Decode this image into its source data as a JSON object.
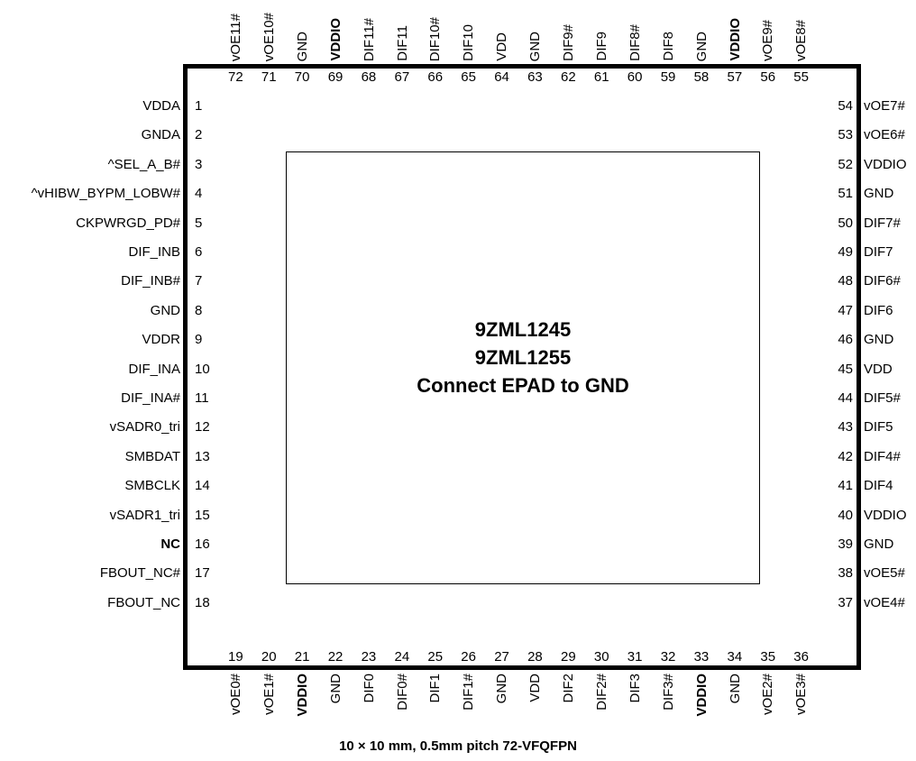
{
  "chip": {
    "names": [
      "9ZML1245",
      "9ZML1255"
    ],
    "epad_note": "Connect EPAD to GND",
    "package_note": "10 × 10 mm, 0.5mm pitch  72-VFQFPN"
  },
  "pins": {
    "left": [
      {
        "num": "1",
        "name": "VDDA",
        "bold": false
      },
      {
        "num": "2",
        "name": "GNDA",
        "bold": false
      },
      {
        "num": "3",
        "name": "^SEL_A_B#",
        "bold": false
      },
      {
        "num": "4",
        "name": "^vHIBW_BYPM_LOBW#",
        "bold": false
      },
      {
        "num": "5",
        "name": "CKPWRGD_PD#",
        "bold": false
      },
      {
        "num": "6",
        "name": "DIF_INB",
        "bold": false
      },
      {
        "num": "7",
        "name": "DIF_INB#",
        "bold": false
      },
      {
        "num": "8",
        "name": "GND",
        "bold": false
      },
      {
        "num": "9",
        "name": "VDDR",
        "bold": false
      },
      {
        "num": "10",
        "name": "DIF_INA",
        "bold": false
      },
      {
        "num": "11",
        "name": "DIF_INA#",
        "bold": false
      },
      {
        "num": "12",
        "name": "vSADR0_tri",
        "bold": false
      },
      {
        "num": "13",
        "name": "SMBDAT",
        "bold": false
      },
      {
        "num": "14",
        "name": "SMBCLK",
        "bold": false
      },
      {
        "num": "15",
        "name": "vSADR1_tri",
        "bold": false
      },
      {
        "num": "16",
        "name": "NC",
        "bold": true
      },
      {
        "num": "17",
        "name": "FBOUT_NC#",
        "bold": false
      },
      {
        "num": "18",
        "name": "FBOUT_NC",
        "bold": false
      }
    ],
    "right": [
      {
        "num": "54",
        "name": "vOE7#",
        "bold": false
      },
      {
        "num": "53",
        "name": "vOE6#",
        "bold": false
      },
      {
        "num": "52",
        "name": "VDDIO",
        "bold": false
      },
      {
        "num": "51",
        "name": "GND",
        "bold": false
      },
      {
        "num": "50",
        "name": "DIF7#",
        "bold": false
      },
      {
        "num": "49",
        "name": "DIF7",
        "bold": false
      },
      {
        "num": "48",
        "name": "DIF6#",
        "bold": false
      },
      {
        "num": "47",
        "name": "DIF6",
        "bold": false
      },
      {
        "num": "46",
        "name": "GND",
        "bold": false
      },
      {
        "num": "45",
        "name": "VDD",
        "bold": false
      },
      {
        "num": "44",
        "name": "DIF5#",
        "bold": false
      },
      {
        "num": "43",
        "name": "DIF5",
        "bold": false
      },
      {
        "num": "42",
        "name": "DIF4#",
        "bold": false
      },
      {
        "num": "41",
        "name": "DIF4",
        "bold": false
      },
      {
        "num": "40",
        "name": "VDDIO",
        "bold": false
      },
      {
        "num": "39",
        "name": "GND",
        "bold": false
      },
      {
        "num": "38",
        "name": "vOE5#",
        "bold": false
      },
      {
        "num": "37",
        "name": "vOE4#",
        "bold": false
      }
    ],
    "top": [
      {
        "num": "72",
        "name": "vOE11#",
        "bold": false
      },
      {
        "num": "71",
        "name": "vOE10#",
        "bold": false
      },
      {
        "num": "70",
        "name": "GND",
        "bold": false
      },
      {
        "num": "69",
        "name": "VDDIO",
        "bold": true
      },
      {
        "num": "68",
        "name": "DIF11#",
        "bold": false
      },
      {
        "num": "67",
        "name": "DIF11",
        "bold": false
      },
      {
        "num": "66",
        "name": "DIF10#",
        "bold": false
      },
      {
        "num": "65",
        "name": "DIF10",
        "bold": false
      },
      {
        "num": "64",
        "name": "VDD",
        "bold": false
      },
      {
        "num": "63",
        "name": "GND",
        "bold": false
      },
      {
        "num": "62",
        "name": "DIF9#",
        "bold": false
      },
      {
        "num": "61",
        "name": "DIF9",
        "bold": false
      },
      {
        "num": "60",
        "name": "DIF8#",
        "bold": false
      },
      {
        "num": "59",
        "name": "DIF8",
        "bold": false
      },
      {
        "num": "58",
        "name": "GND",
        "bold": false
      },
      {
        "num": "57",
        "name": "VDDIO",
        "bold": true
      },
      {
        "num": "56",
        "name": "vOE9#",
        "bold": false
      },
      {
        "num": "55",
        "name": "vOE8#",
        "bold": false
      }
    ],
    "bottom": [
      {
        "num": "19",
        "name": "vOE0#",
        "bold": false
      },
      {
        "num": "20",
        "name": "vOE1#",
        "bold": false
      },
      {
        "num": "21",
        "name": "VDDIO",
        "bold": true
      },
      {
        "num": "22",
        "name": "GND",
        "bold": false
      },
      {
        "num": "23",
        "name": "DIF0",
        "bold": false
      },
      {
        "num": "24",
        "name": "DIF0#",
        "bold": false
      },
      {
        "num": "25",
        "name": "DIF1",
        "bold": false
      },
      {
        "num": "26",
        "name": "DIF1#",
        "bold": false
      },
      {
        "num": "27",
        "name": "GND",
        "bold": false
      },
      {
        "num": "28",
        "name": "VDD",
        "bold": false
      },
      {
        "num": "29",
        "name": "DIF2",
        "bold": false
      },
      {
        "num": "30",
        "name": "DIF2#",
        "bold": false
      },
      {
        "num": "31",
        "name": "DIF3",
        "bold": false
      },
      {
        "num": "32",
        "name": "DIF3#",
        "bold": false
      },
      {
        "num": "33",
        "name": "VDDIO",
        "bold": true
      },
      {
        "num": "34",
        "name": "GND",
        "bold": false
      },
      {
        "num": "35",
        "name": "vOE2#",
        "bold": false
      },
      {
        "num": "36",
        "name": "vOE3#",
        "bold": false
      }
    ]
  }
}
